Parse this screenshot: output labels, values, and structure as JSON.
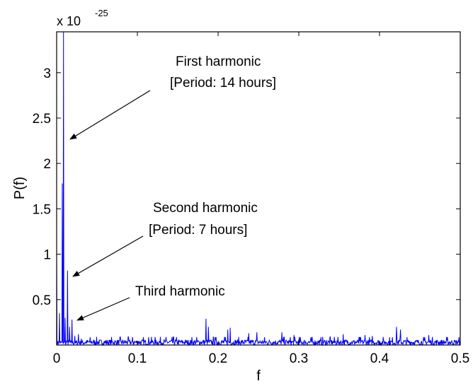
{
  "chart_data": {
    "type": "line",
    "title": "",
    "xlabel": "f",
    "ylabel": "P(f)",
    "xlim": [
      0,
      0.5
    ],
    "ylim": [
      0,
      3.45
    ],
    "x_ticks": [
      0,
      0.1,
      0.2,
      0.3,
      0.4,
      0.5
    ],
    "x_tick_labels": [
      "0",
      "0.1",
      "0.2",
      "0.3",
      "0.4",
      "0.5"
    ],
    "y_ticks": [
      0.5,
      1,
      1.5,
      2,
      2.5,
      3
    ],
    "y_tick_labels": [
      "0.5",
      "1",
      "1.5",
      "2",
      "2.5",
      "3"
    ],
    "y_multiplier": {
      "base": "x 10",
      "exponent": "-25"
    },
    "grid": false,
    "legend": "none",
    "line_color": "#0000ff",
    "peaks": [
      {
        "x": 0.0,
        "y": 0.98
      },
      {
        "x": 0.0035,
        "y": 0.35
      },
      {
        "x": 0.007,
        "y": 1.78
      },
      {
        "x": 0.0085,
        "y": 3.45
      },
      {
        "x": 0.0105,
        "y": 0.3
      },
      {
        "x": 0.0135,
        "y": 0.82
      },
      {
        "x": 0.016,
        "y": 0.2
      },
      {
        "x": 0.019,
        "y": 0.28
      },
      {
        "x": 0.0225,
        "y": 0.1
      },
      {
        "x": 0.027,
        "y": 0.12
      },
      {
        "x": 0.0305,
        "y": 0.07
      },
      {
        "x": 0.185,
        "y": 0.29
      },
      {
        "x": 0.188,
        "y": 0.2
      },
      {
        "x": 0.212,
        "y": 0.17
      },
      {
        "x": 0.215,
        "y": 0.19
      },
      {
        "x": 0.238,
        "y": 0.13
      },
      {
        "x": 0.248,
        "y": 0.14
      },
      {
        "x": 0.279,
        "y": 0.14
      },
      {
        "x": 0.294,
        "y": 0.11
      },
      {
        "x": 0.355,
        "y": 0.12
      },
      {
        "x": 0.382,
        "y": 0.11
      },
      {
        "x": 0.391,
        "y": 0.1
      },
      {
        "x": 0.421,
        "y": 0.2
      },
      {
        "x": 0.426,
        "y": 0.17
      },
      {
        "x": 0.461,
        "y": 0.11
      }
    ],
    "noise_floor": 0.06,
    "annotations": [
      {
        "lines": [
          "First harmonic",
          "[Period: 14 hours]"
        ]
      },
      {
        "lines": [
          "Second harmonic",
          "[Period: 7 hours]"
        ]
      },
      {
        "lines": [
          "Third harmonic"
        ]
      }
    ]
  }
}
